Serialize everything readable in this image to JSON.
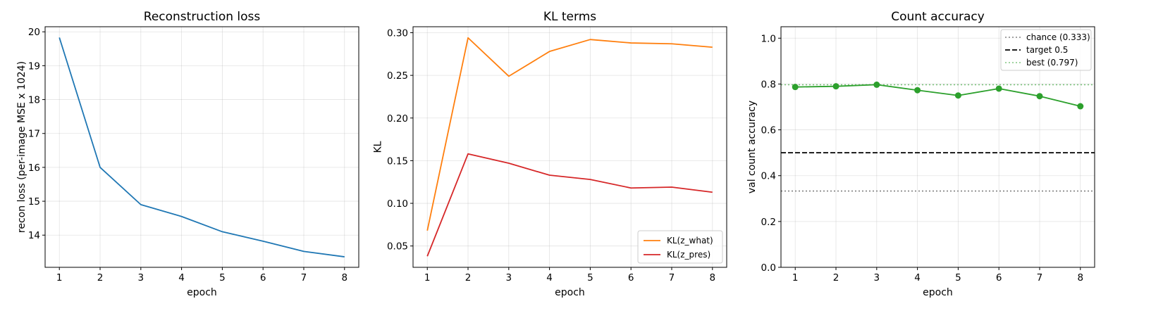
{
  "chart_data": [
    {
      "type": "line",
      "title": "Reconstruction loss",
      "xlabel": "epoch",
      "ylabel": "recon loss (per-image MSE x 1024)",
      "x": [
        1,
        2,
        3,
        4,
        5,
        6,
        7,
        8
      ],
      "xlim": [
        0.65,
        8.35
      ],
      "ylim": [
        13.05,
        20.15
      ],
      "yticks": [
        14,
        15,
        16,
        17,
        18,
        19,
        20
      ],
      "ytick_labels": [
        "14",
        "15",
        "16",
        "17",
        "18",
        "19",
        "20"
      ],
      "grid": true,
      "series": [
        {
          "name": "",
          "color": "#1f77b4",
          "values": [
            19.83,
            16.0,
            14.9,
            14.55,
            14.1,
            13.82,
            13.52,
            13.36
          ]
        }
      ]
    },
    {
      "type": "line",
      "title": "KL terms",
      "xlabel": "epoch",
      "ylabel": "KL",
      "x": [
        1,
        2,
        3,
        4,
        5,
        6,
        7,
        8
      ],
      "xlim": [
        0.65,
        8.35
      ],
      "ylim": [
        0.025,
        0.307
      ],
      "yticks": [
        0.05,
        0.1,
        0.15,
        0.2,
        0.25,
        0.3
      ],
      "ytick_labels": [
        "0.05",
        "0.10",
        "0.15",
        "0.20",
        "0.25",
        "0.30"
      ],
      "grid": true,
      "legend": "bottom-right",
      "series": [
        {
          "name": "KL(z_what)",
          "color": "#ff7f0e",
          "values": [
            0.068,
            0.294,
            0.249,
            0.278,
            0.292,
            0.288,
            0.287,
            0.283
          ]
        },
        {
          "name": "KL(z_pres)",
          "color": "#d62728",
          "values": [
            0.038,
            0.158,
            0.147,
            0.133,
            0.128,
            0.118,
            0.119,
            0.113
          ]
        }
      ]
    },
    {
      "type": "line",
      "title": "Count accuracy",
      "xlabel": "epoch",
      "ylabel": "val count accuracy",
      "x": [
        1,
        2,
        3,
        4,
        5,
        6,
        7,
        8
      ],
      "xlim": [
        0.65,
        8.35
      ],
      "ylim": [
        0.0,
        1.05
      ],
      "yticks": [
        0.0,
        0.2,
        0.4,
        0.6,
        0.8,
        1.0
      ],
      "ytick_labels": [
        "0.0",
        "0.2",
        "0.4",
        "0.6",
        "0.8",
        "1.0"
      ],
      "grid": true,
      "legend": "top-right",
      "series": [
        {
          "name": "",
          "color": "#2ca02c",
          "marker": "circle",
          "values": [
            0.787,
            0.79,
            0.797,
            0.773,
            0.75,
            0.78,
            0.747,
            0.703
          ]
        }
      ],
      "hlines": [
        {
          "name": "chance (0.333)",
          "y": 0.333,
          "color": "#808080",
          "style": "dotted"
        },
        {
          "name": "target 0.5",
          "y": 0.5,
          "color": "#000000",
          "style": "dashed"
        },
        {
          "name": "best (0.797)",
          "y": 0.797,
          "color": "#2ca02c",
          "style": "dotted",
          "alpha": 0.6
        }
      ]
    }
  ]
}
